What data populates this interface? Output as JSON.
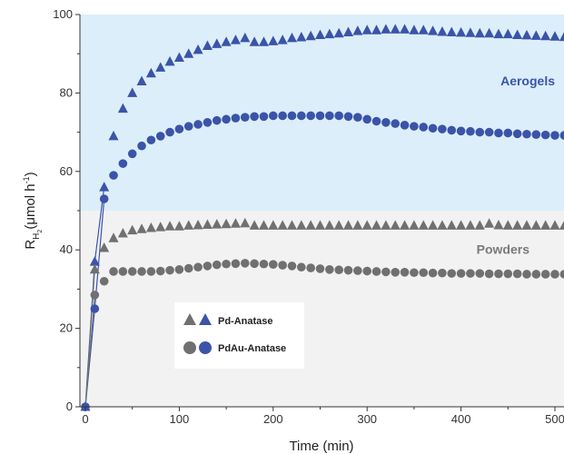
{
  "chart_data": {
    "type": "scatter",
    "xlabel": "Time (min)",
    "ylabel_main": "R",
    "ylabel_sub": "H",
    "ylabel_subsub": "2",
    "ylabel_unit": "(μmol h",
    "ylabel_sup": "-1",
    "ylabel_close": ")",
    "xlim": [
      0,
      545
    ],
    "ylim": [
      0,
      100
    ],
    "xticks": [
      "0",
      "100",
      "200",
      "300",
      "400",
      "500"
    ],
    "xtick_values": [
      0,
      100,
      200,
      300,
      400,
      500
    ],
    "yticks": [
      "0",
      "20",
      "40",
      "60",
      "80",
      "100"
    ],
    "ytick_values": [
      0,
      20,
      40,
      60,
      80,
      100
    ],
    "regions": [
      {
        "label": "Aerogels",
        "y_from": 50,
        "y_to": 100,
        "color": "#dceefa",
        "text_color": "#3a55a8"
      },
      {
        "label": "Powders",
        "y_from": 0,
        "y_to": 50,
        "color": "#f2f2f2",
        "text_color": "#7a7a7a"
      }
    ],
    "legend": [
      {
        "label": "Pd-Anatase",
        "marker": "triangle"
      },
      {
        "label": "PdAu-Anatase",
        "marker": "circle"
      }
    ],
    "series": [
      {
        "marker": "triangle",
        "color": "#3b54a8",
        "connect_first": 3,
        "x": [
          0,
          10,
          20,
          30,
          40,
          50,
          60,
          70,
          80,
          90,
          100,
          110,
          120,
          130,
          140,
          150,
          160,
          170,
          180,
          190,
          200,
          210,
          220,
          230,
          240,
          250,
          260,
          270,
          280,
          290,
          300,
          310,
          320,
          330,
          340,
          350,
          360,
          370,
          380,
          390,
          400,
          410,
          420,
          430,
          440,
          450,
          460,
          470,
          480,
          490,
          500,
          510,
          520,
          530,
          540
        ],
        "y": [
          0,
          37,
          56,
          69,
          76,
          80,
          83,
          85,
          86.5,
          88,
          89,
          90,
          91,
          92,
          92.5,
          93,
          93.5,
          94,
          93,
          93,
          93.2,
          93.5,
          94,
          94.2,
          94.5,
          94.8,
          95,
          95.2,
          95.5,
          95.8,
          96,
          96,
          96.2,
          96.2,
          96.2,
          96,
          96,
          95.8,
          95.6,
          95.5,
          95.4,
          95.3,
          95.2,
          95.2,
          95,
          95,
          94.8,
          94.7,
          94.6,
          94.5,
          94.4,
          94.3,
          94.2,
          94,
          93.8
        ]
      },
      {
        "marker": "circle",
        "color": "#3b54a8",
        "connect_first": 3,
        "x": [
          0,
          10,
          20,
          30,
          40,
          50,
          60,
          70,
          80,
          90,
          100,
          110,
          120,
          130,
          140,
          150,
          160,
          170,
          180,
          190,
          200,
          210,
          220,
          230,
          240,
          250,
          260,
          270,
          280,
          290,
          300,
          310,
          320,
          330,
          340,
          350,
          360,
          370,
          380,
          390,
          400,
          410,
          420,
          430,
          440,
          450,
          460,
          470,
          480,
          490,
          500,
          510,
          520,
          530,
          540
        ],
        "y": [
          0,
          25,
          53,
          59,
          62,
          64.5,
          66.5,
          68,
          69,
          70,
          70.8,
          71.5,
          72,
          72.5,
          73,
          73.3,
          73.6,
          73.8,
          74,
          74,
          74.2,
          74.2,
          74.2,
          74.2,
          74.2,
          74.2,
          74.2,
          74.2,
          74,
          73.8,
          73.3,
          72.8,
          72.5,
          72.2,
          71.8,
          71.5,
          71.3,
          71,
          70.8,
          70.5,
          70.3,
          70.2,
          70,
          70,
          69.8,
          69.8,
          69.6,
          69.5,
          69.4,
          69.3,
          69.2,
          69.2,
          69.1,
          69,
          69
        ]
      },
      {
        "marker": "triangle",
        "color": "#707070",
        "connect_first": 0,
        "x": [
          10,
          20,
          30,
          40,
          50,
          60,
          70,
          80,
          90,
          100,
          110,
          120,
          130,
          140,
          150,
          160,
          170,
          180,
          190,
          200,
          210,
          220,
          230,
          240,
          250,
          260,
          270,
          280,
          290,
          300,
          310,
          320,
          330,
          340,
          350,
          360,
          370,
          380,
          390,
          400,
          410,
          420,
          430,
          440,
          450,
          460,
          470,
          480,
          490,
          500,
          510,
          520,
          530,
          540
        ],
        "y": [
          35,
          40.5,
          43,
          44.2,
          45,
          45.3,
          45.6,
          45.8,
          46,
          46,
          46.2,
          46.3,
          46.4,
          46.5,
          46.6,
          46.7,
          46.8,
          46.2,
          46.2,
          46.2,
          46.2,
          46.2,
          46.2,
          46.2,
          46.2,
          46.2,
          46.2,
          46.2,
          46.2,
          46.2,
          46.2,
          46.2,
          46.2,
          46.2,
          46.2,
          46.2,
          46.2,
          46.2,
          46.2,
          46.2,
          46.2,
          46.2,
          46.7,
          46.3,
          46.2,
          46.2,
          46.2,
          46.2,
          46.2,
          46.2,
          46.2,
          46.2,
          46.2,
          46.2
        ]
      },
      {
        "marker": "circle",
        "color": "#707070",
        "connect_first": 0,
        "x": [
          10,
          20,
          30,
          40,
          50,
          60,
          70,
          80,
          90,
          100,
          110,
          120,
          130,
          140,
          150,
          160,
          170,
          180,
          190,
          200,
          210,
          220,
          230,
          240,
          250,
          260,
          270,
          280,
          290,
          300,
          310,
          320,
          330,
          340,
          350,
          360,
          370,
          380,
          390,
          400,
          410,
          420,
          430,
          440,
          450,
          460,
          470,
          480,
          490,
          500,
          510,
          520,
          530,
          540
        ],
        "y": [
          28.5,
          32,
          34.5,
          34.5,
          34.5,
          34.5,
          34.5,
          34.6,
          34.8,
          35,
          35.3,
          35.6,
          35.9,
          36.2,
          36.4,
          36.5,
          36.6,
          36.5,
          36.4,
          36.3,
          36.1,
          35.9,
          35.6,
          35.4,
          35.2,
          35,
          34.9,
          34.8,
          34.7,
          34.6,
          34.5,
          34.4,
          34.3,
          34.3,
          34.2,
          34.2,
          34.1,
          34.1,
          34,
          34,
          34,
          34,
          33.9,
          33.9,
          33.9,
          33.9,
          33.8,
          33.8,
          33.8,
          33.8,
          33.8,
          33.8,
          33.8,
          33.8
        ]
      }
    ]
  },
  "colors": {
    "triangle_gray": "#707070",
    "triangle_blue": "#3b54a8",
    "circle_gray": "#707070",
    "circle_blue": "#3b54a8"
  }
}
